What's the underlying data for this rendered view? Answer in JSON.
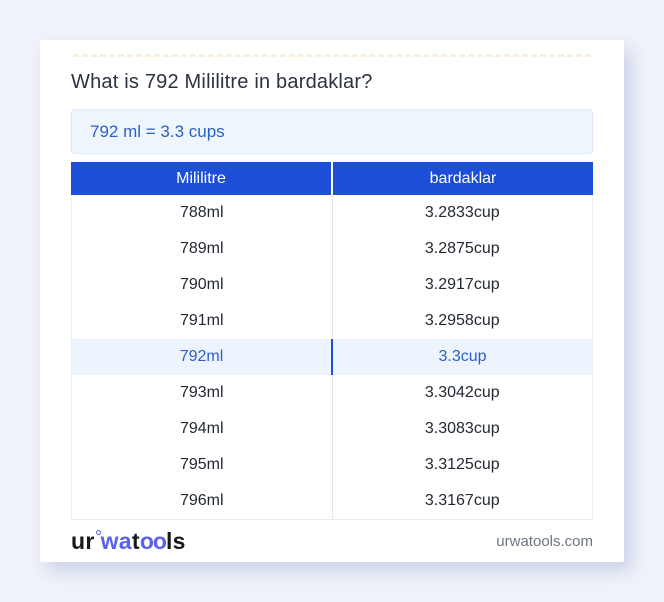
{
  "page": {
    "title": "What is 792 Mililitre in bardaklar?",
    "answer": "792 ml = 3.3 cups"
  },
  "table": {
    "headers": [
      "Mililitre",
      "bardaklar"
    ],
    "rows": [
      {
        "ml": "788ml",
        "cup": "3.2833cup",
        "highlight": false
      },
      {
        "ml": "789ml",
        "cup": "3.2875cup",
        "highlight": false
      },
      {
        "ml": "790ml",
        "cup": "3.2917cup",
        "highlight": false
      },
      {
        "ml": "791ml",
        "cup": "3.2958cup",
        "highlight": false
      },
      {
        "ml": "792ml",
        "cup": "3.3cup",
        "highlight": true
      },
      {
        "ml": "793ml",
        "cup": "3.3042cup",
        "highlight": false
      },
      {
        "ml": "794ml",
        "cup": "3.3083cup",
        "highlight": false
      },
      {
        "ml": "795ml",
        "cup": "3.3125cup",
        "highlight": false
      },
      {
        "ml": "796ml",
        "cup": "3.3167cup",
        "highlight": false
      }
    ]
  },
  "footer": {
    "logo_segments": [
      {
        "text": "ur",
        "color": "dark"
      },
      {
        "text": "wa",
        "color": "blue"
      },
      {
        "text": "t",
        "color": "dark"
      },
      {
        "text": "oo",
        "color": "blue"
      },
      {
        "text": "ls",
        "color": "dark"
      }
    ],
    "domain": "urwatools.com"
  },
  "colors": {
    "header_blue": "#1d4ed8",
    "accent_blue": "#2c5fc4",
    "logo_blue": "#5a61ee",
    "answer_bg": "#eff5fd",
    "highlight_bg": "#edf4fd",
    "page_bg": "#f1f3fa"
  }
}
